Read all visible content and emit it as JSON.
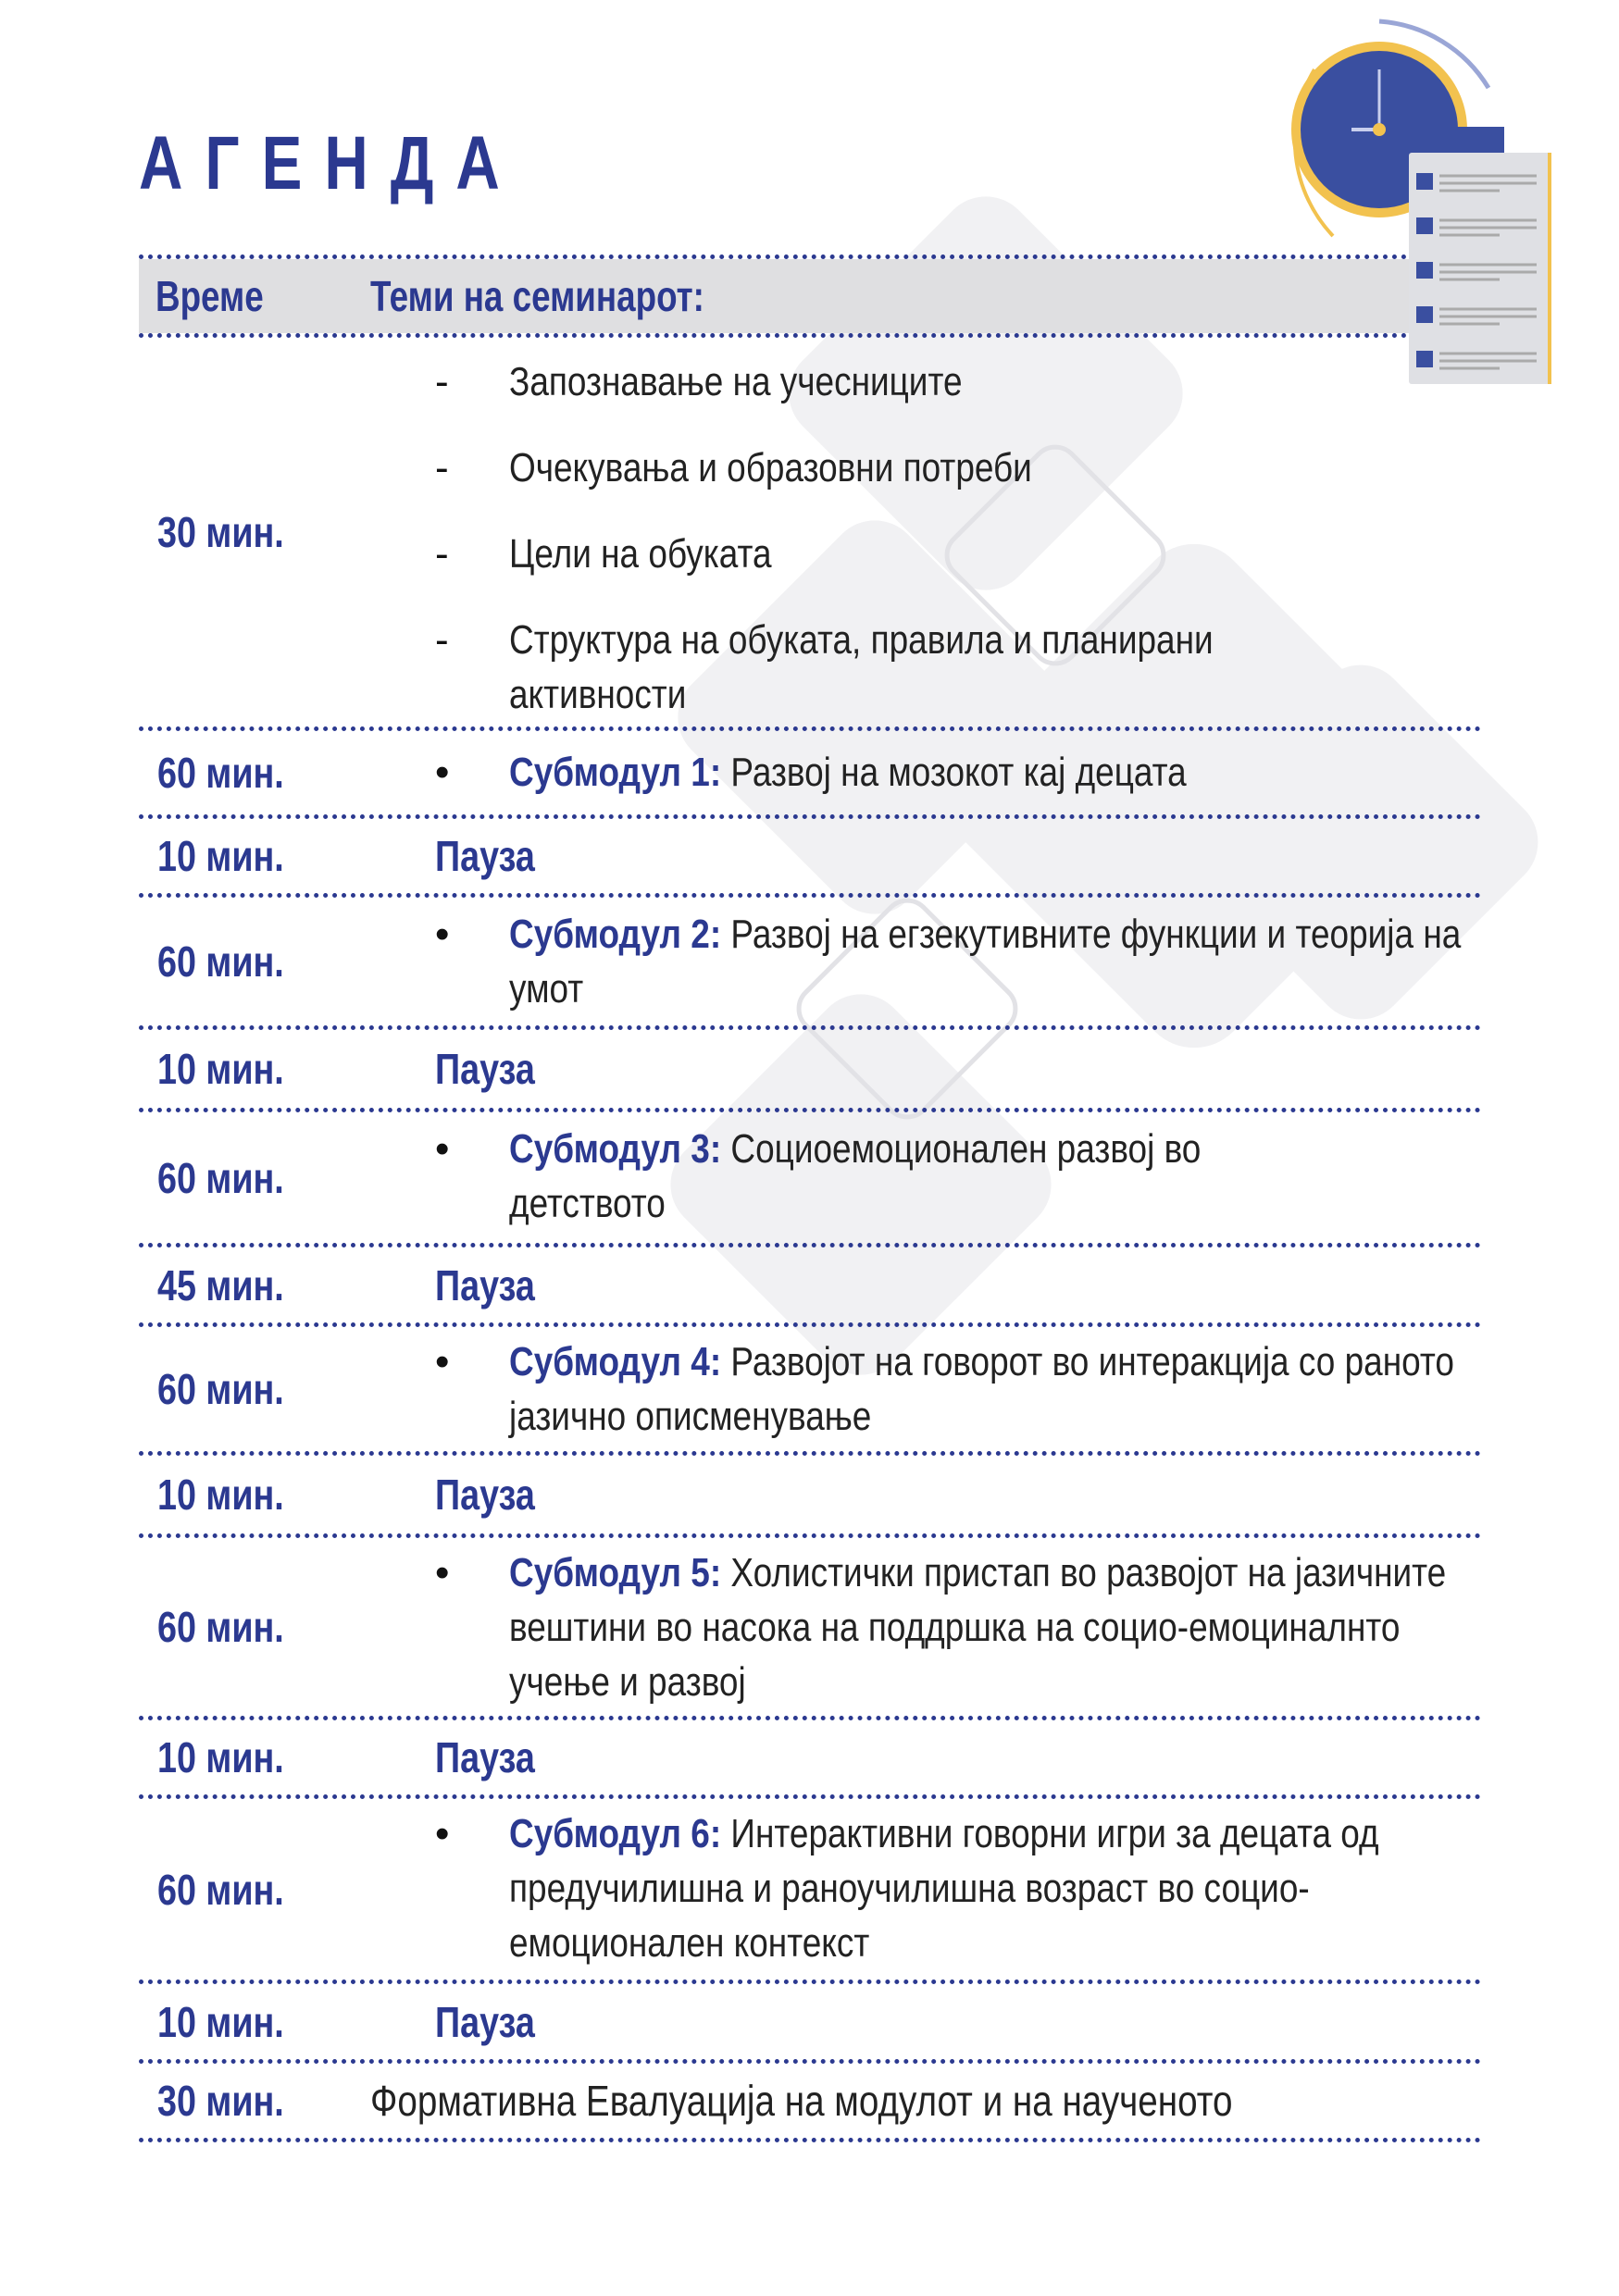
{
  "title": "АГЕНДА",
  "header": {
    "time_label": "Време",
    "topics_label": "Теми на семинарот:"
  },
  "colors": {
    "accent": "#2b3990",
    "header_bg": "#dfdfe1",
    "clock_ring": "#f2c24f"
  },
  "rows": [
    {
      "time": "30 мин.",
      "items": [
        "Запознавање на учесниците",
        "Очекувања и образовни потреби",
        "Цели на обуката",
        "Структура на обуката, правила и планирани активности"
      ],
      "marker": "-"
    },
    {
      "time": "60 мин.",
      "marker": "•",
      "submodule": "Субмодул 1:",
      "text": "Развој на мозокот кај децата"
    },
    {
      "time": "10 мин.",
      "pause": "Пауза"
    },
    {
      "time": "60 мин.",
      "marker": "•",
      "submodule": "Субмодул 2:",
      "text": "Развој на егзекутивните функции и теорија на умот"
    },
    {
      "time": "10 мин.",
      "pause": "Пауза"
    },
    {
      "time": "60 мин.",
      "marker": "•",
      "submodule": "Субмодул 3:",
      "text": "Социоемоционален развој во детството"
    },
    {
      "time": "45 мин.",
      "pause": "Пауза"
    },
    {
      "time": "60 мин.",
      "marker": "•",
      "submodule": "Субмодул 4:",
      "text": "Развојот на говорот во интеракција со раното јазично описменување"
    },
    {
      "time": "10 мин.",
      "pause": "Пауза"
    },
    {
      "time": "60 мин.",
      "marker": "•",
      "submodule": "Субмодул 5:",
      "text": "Холистички пристап во развојот на јазичните вештини во насока на поддршка на социо-емоциналнто учење и развој"
    },
    {
      "time": "10 мин.",
      "pause": "Пауза"
    },
    {
      "time": "60 мин.",
      "marker": "•",
      "submodule": "Субмодул 6:",
      "text": "Интерактивни говорни игри за децата од предучилишна и раноучилишна возраст во социо-емоционален контекст"
    },
    {
      "time": "10 мин.",
      "pause": "Пауза"
    },
    {
      "time": "30 мин.",
      "final": "Формативна Евалуација на модулот и на наученото"
    }
  ]
}
